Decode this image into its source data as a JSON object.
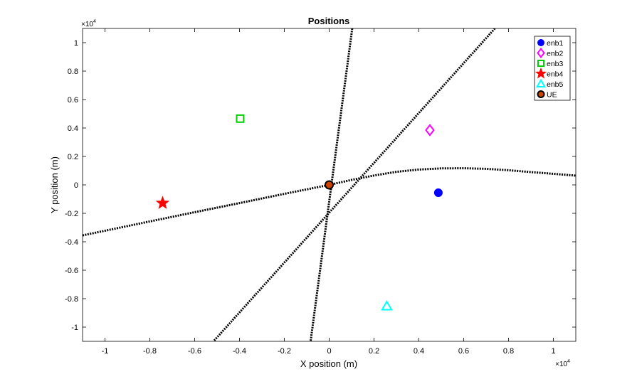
{
  "chart_data": {
    "type": "scatter",
    "title": "Positions",
    "xlabel": "X position (m)",
    "ylabel": "Y position (m)",
    "x_exponent_label": "×10",
    "y_exponent_label": "×10",
    "exponent": "4",
    "xlim": [
      -1.1,
      1.1
    ],
    "ylim": [
      -1.1,
      1.1
    ],
    "scale_note": "axis values in units of 10^4 m",
    "xticks": [
      -1,
      -0.8,
      -0.6,
      -0.4,
      -0.2,
      0,
      0.2,
      0.4,
      0.6,
      0.8,
      1
    ],
    "xtick_labels": [
      "-1",
      "-0.8",
      "-0.6",
      "-0.4",
      "-0.2",
      "0",
      "0.2",
      "0.4",
      "0.6",
      "0.8",
      "1"
    ],
    "yticks": [
      -1,
      -0.8,
      -0.6,
      -0.4,
      -0.2,
      0,
      0.2,
      0.4,
      0.6,
      0.8,
      1
    ],
    "ytick_labels": [
      "-1",
      "-0.8",
      "-0.6",
      "-0.4",
      "-0.2",
      "0",
      "0.2",
      "0.4",
      "0.6",
      "0.8",
      "1"
    ],
    "grid": false,
    "legend_position": "top-right",
    "series": [
      {
        "name": "enb1",
        "x": 0.487,
        "y": -0.055,
        "marker": "circle-filled",
        "color": "#0000ff"
      },
      {
        "name": "enb2",
        "x": 0.449,
        "y": 0.385,
        "marker": "diamond",
        "color": "#ff00ff"
      },
      {
        "name": "enb3",
        "x": -0.397,
        "y": 0.466,
        "marker": "square",
        "color": "#00cc00"
      },
      {
        "name": "enb4",
        "x": -0.743,
        "y": -0.128,
        "marker": "star",
        "color": "#ff0000"
      },
      {
        "name": "enb5",
        "x": 0.257,
        "y": -0.853,
        "marker": "triangle",
        "color": "#00ffff"
      },
      {
        "name": "UE",
        "x": 0.0,
        "y": 0.0,
        "marker": "circle-ue",
        "color": "#cc4400"
      }
    ],
    "lines": [
      {
        "style": "dotted",
        "color": "#000000",
        "x": [
          0.103,
          -0.083
        ],
        "y": [
          1.1,
          -1.1
        ]
      },
      {
        "style": "dotted",
        "color": "#000000",
        "x": [
          0.739,
          -0.516
        ],
        "y": [
          1.1,
          -1.1
        ]
      },
      {
        "style": "dotted",
        "color": "#000000",
        "x": [
          -1.1,
          -0.8,
          -0.6,
          -0.4,
          -0.2,
          0.0,
          0.1,
          0.2,
          0.3,
          0.4,
          0.5,
          0.6,
          0.7,
          0.8,
          0.9,
          1.0,
          1.1
        ],
        "y": [
          -0.355,
          -0.257,
          -0.192,
          -0.128,
          -0.063,
          0.0,
          0.035,
          0.066,
          0.092,
          0.108,
          0.116,
          0.117,
          0.113,
          0.103,
          0.09,
          0.078,
          0.065
        ]
      }
    ]
  }
}
